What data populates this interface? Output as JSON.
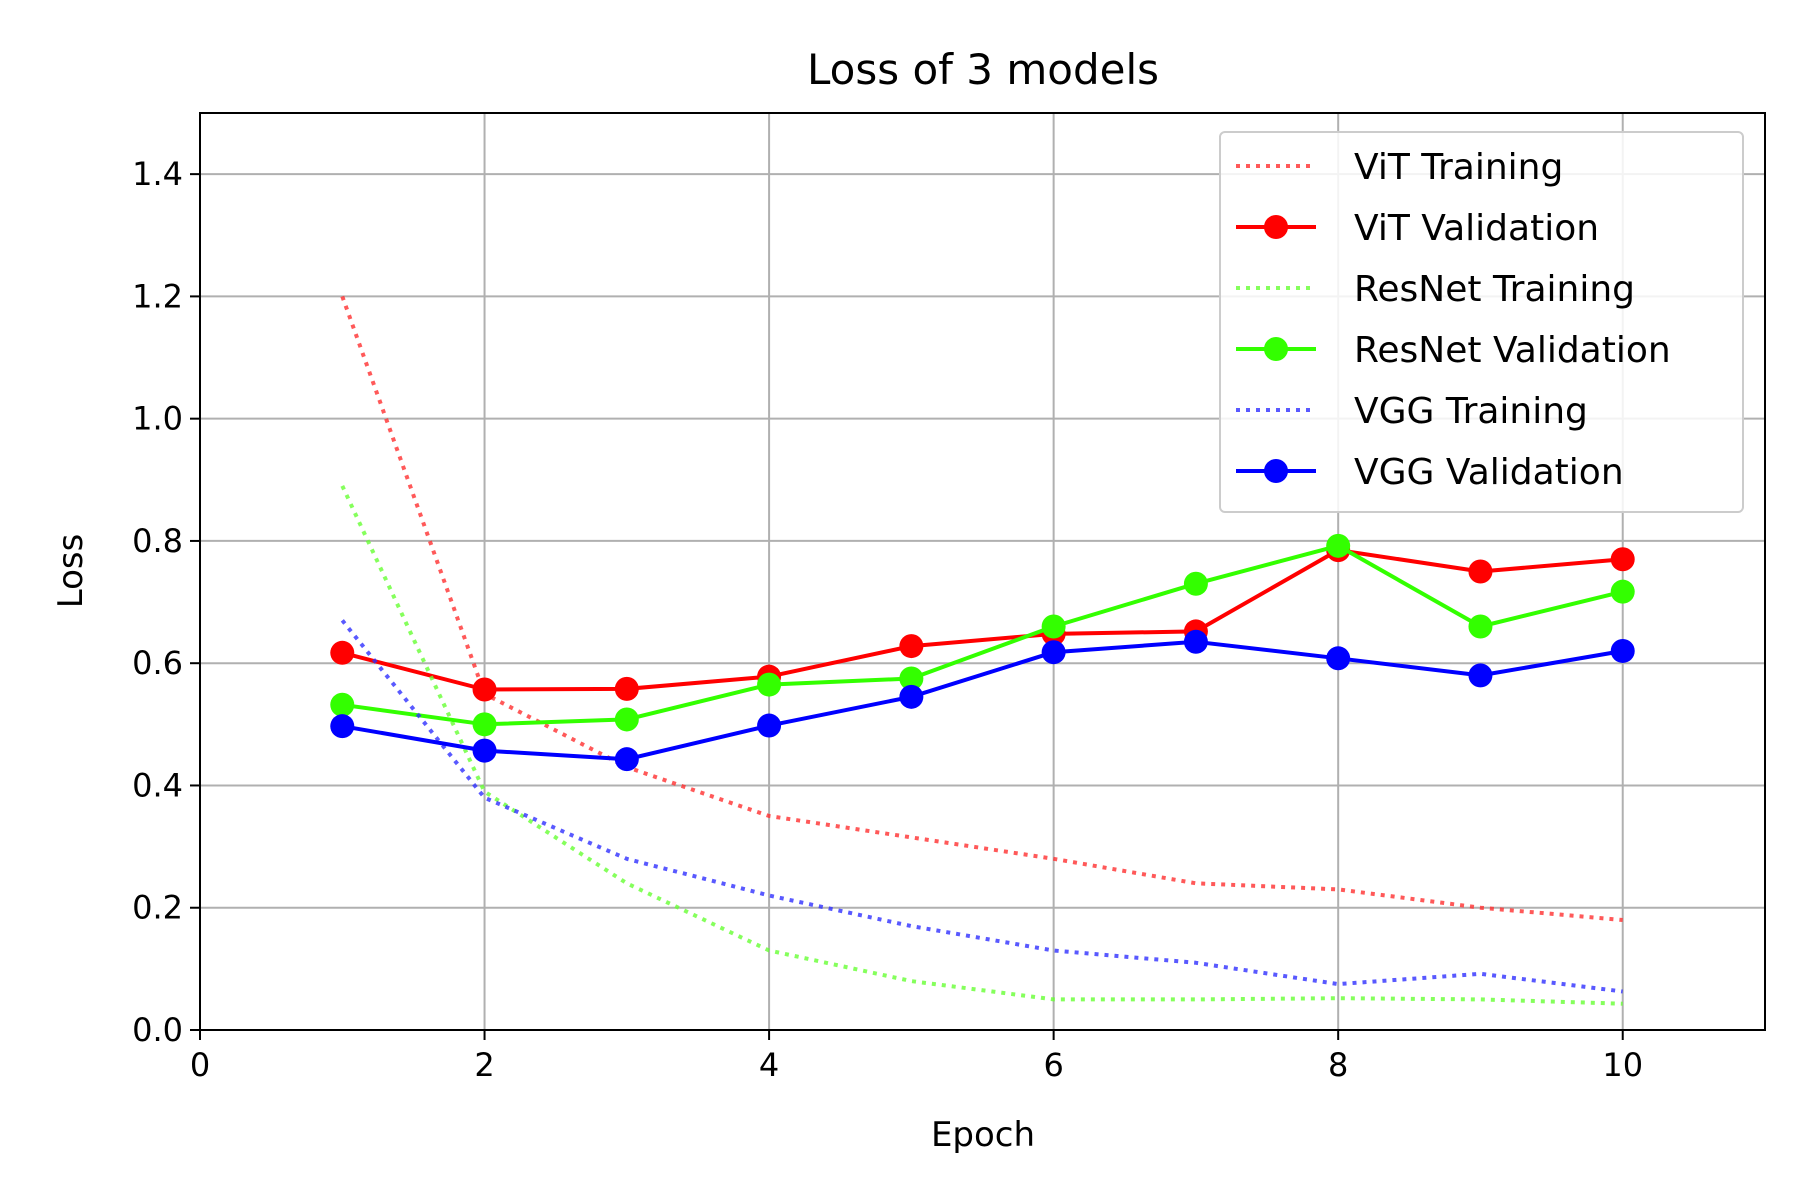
{
  "chart_data": {
    "type": "line",
    "title": "Loss of 3 models",
    "xlabel": "Epoch",
    "ylabel": "Loss",
    "xlim": [
      0,
      11
    ],
    "ylim": [
      0,
      1.5
    ],
    "xticks": [
      0,
      2,
      4,
      6,
      8,
      10
    ],
    "xtick_labels": [
      "0",
      "2",
      "4",
      "6",
      "8",
      "10"
    ],
    "yticks": [
      0.0,
      0.2,
      0.4,
      0.6,
      0.8,
      1.0,
      1.2,
      1.4
    ],
    "ytick_labels": [
      "0.0",
      "0.2",
      "0.4",
      "0.6",
      "0.8",
      "1.0",
      "1.2",
      "1.4"
    ],
    "grid": true,
    "legend_position": "top-right",
    "x": [
      1,
      2,
      3,
      4,
      5,
      6,
      7,
      8,
      9,
      10
    ],
    "series": [
      {
        "name": "ViT Training",
        "color": "#ff3030",
        "style": "dotted",
        "marker": false,
        "values": [
          1.2,
          0.55,
          0.43,
          0.35,
          0.315,
          0.28,
          0.24,
          0.23,
          0.2,
          0.18
        ]
      },
      {
        "name": "ViT Validation",
        "color": "#ff0000",
        "style": "solid",
        "marker": true,
        "values": [
          0.617,
          0.557,
          0.558,
          0.578,
          0.628,
          0.648,
          0.652,
          0.785,
          0.75,
          0.77
        ]
      },
      {
        "name": "ResNet Training",
        "color": "#66ff33",
        "style": "dotted",
        "marker": false,
        "values": [
          0.89,
          0.39,
          0.24,
          0.13,
          0.08,
          0.05,
          0.05,
          0.052,
          0.05,
          0.043
        ]
      },
      {
        "name": "ResNet Validation",
        "color": "#33ff00",
        "style": "solid",
        "marker": true,
        "values": [
          0.532,
          0.5,
          0.508,
          0.565,
          0.575,
          0.66,
          0.73,
          0.792,
          0.66,
          0.717
        ]
      },
      {
        "name": "VGG Training",
        "color": "#3030ff",
        "style": "dotted",
        "marker": false,
        "values": [
          0.67,
          0.38,
          0.28,
          0.22,
          0.17,
          0.13,
          0.11,
          0.075,
          0.092,
          0.063
        ]
      },
      {
        "name": "VGG Validation",
        "color": "#0000ff",
        "style": "solid",
        "marker": true,
        "values": [
          0.497,
          0.457,
          0.443,
          0.498,
          0.545,
          0.618,
          0.635,
          0.608,
          0.58,
          0.62
        ]
      }
    ]
  }
}
